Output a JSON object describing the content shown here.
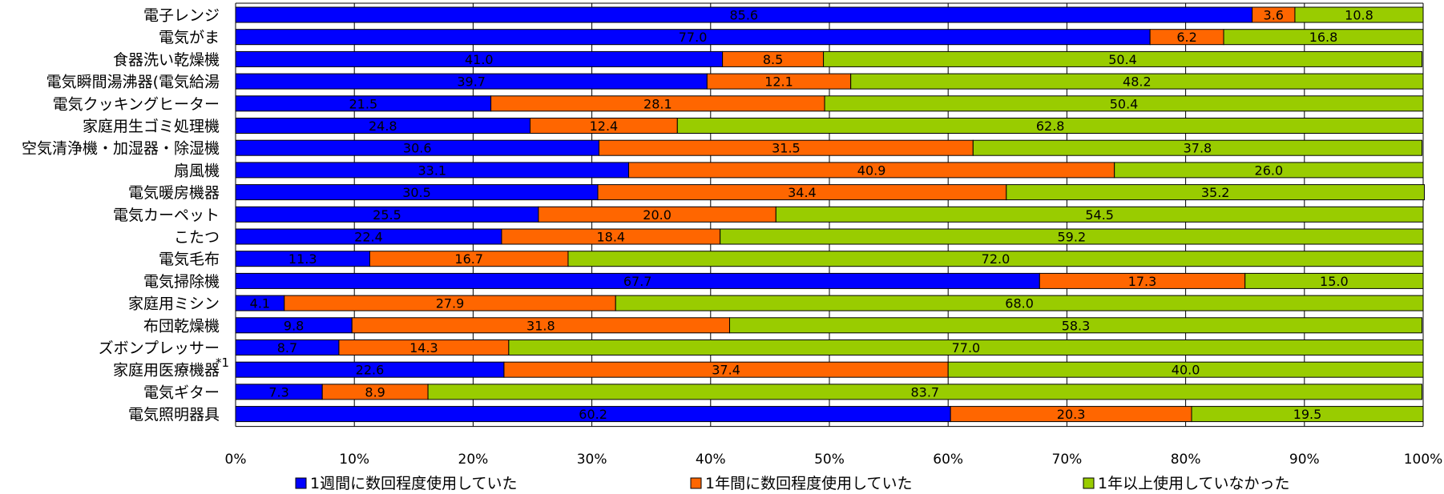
{
  "chart_data": {
    "type": "bar",
    "orientation": "horizontal",
    "stacked": "percent",
    "categories": [
      "電子レンジ",
      "電気がま",
      "食器洗い乾燥機",
      "電気瞬間湯沸器(電気給湯",
      "電気クッキングヒーター",
      "家庭用生ゴミ処理機",
      "空気清浄機・加湿器・除湿機",
      "扇風機",
      "電気暖房機器",
      "電気カーペット",
      "こたつ",
      "電気毛布",
      "電気掃除機",
      "家庭用ミシン",
      "布団乾燥機",
      "ズボンプレッサー",
      "家庭用医療機器",
      "電気ギター",
      "電気照明器具"
    ],
    "series": [
      {
        "name": "1週間に数回程度使用していた",
        "color": "#0000ff",
        "values": [
          85.6,
          77.0,
          41.0,
          39.7,
          21.5,
          24.8,
          30.6,
          33.1,
          30.5,
          25.5,
          22.4,
          11.3,
          67.7,
          4.1,
          9.8,
          8.7,
          22.6,
          7.3,
          60.2
        ]
      },
      {
        "name": "1年間に数回程度使用していた",
        "color": "#ff6600",
        "values": [
          3.6,
          6.2,
          8.5,
          12.1,
          28.1,
          12.4,
          31.5,
          40.9,
          34.4,
          20.0,
          18.4,
          16.7,
          17.3,
          27.9,
          31.8,
          14.3,
          37.4,
          8.9,
          20.3
        ]
      },
      {
        "name": "1年以上使用していなかった",
        "color": "#99cc00",
        "values": [
          10.8,
          16.8,
          50.4,
          48.2,
          50.4,
          62.8,
          37.8,
          26.0,
          35.2,
          54.5,
          59.2,
          72.0,
          15.0,
          68.0,
          58.3,
          77.0,
          40.0,
          83.7,
          19.5
        ]
      }
    ],
    "x_ticks": [
      "0%",
      "10%",
      "20%",
      "30%",
      "40%",
      "50%",
      "60%",
      "70%",
      "80%",
      "90%",
      "100%"
    ],
    "xlim": [
      0,
      100
    ],
    "grid": true,
    "legend_position": "bottom",
    "annotation": "*1"
  }
}
